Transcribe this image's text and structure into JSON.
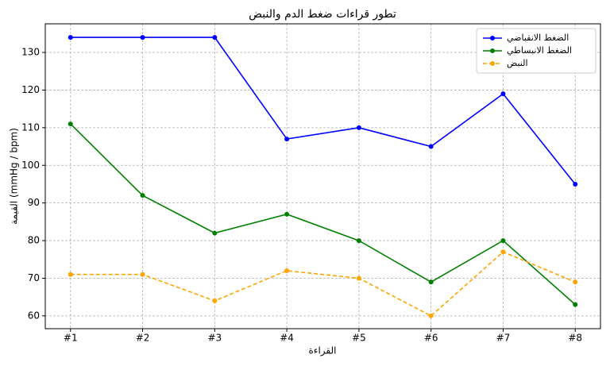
{
  "chart_data": {
    "type": "line",
    "title": "تطور قراءات ضغط الدم والنبض",
    "x_label": "القراءة",
    "y_label": "القيمة (mmHg / bpm)",
    "categories": [
      "#1",
      "#2",
      "#3",
      "#4",
      "#5",
      "#6",
      "#7",
      "#8"
    ],
    "series": [
      {
        "name": "الضغط الانقباضي",
        "color": "#0000ff",
        "dash": false,
        "values": [
          134,
          134,
          134,
          107,
          110,
          105,
          119,
          95
        ]
      },
      {
        "name": "الضغط الانبساطي",
        "color": "#008000",
        "dash": false,
        "values": [
          111,
          92,
          82,
          87,
          80,
          69,
          80,
          63
        ]
      },
      {
        "name": "النبض",
        "color": "#ffa500",
        "dash": true,
        "values": [
          71,
          71,
          64,
          72,
          70,
          60,
          77,
          69
        ]
      }
    ],
    "ylim": [
      56.6,
      137.6
    ],
    "yticks": [
      60,
      70,
      80,
      90,
      100,
      110,
      120,
      130
    ],
    "grid": true,
    "legend": "upper-right"
  }
}
